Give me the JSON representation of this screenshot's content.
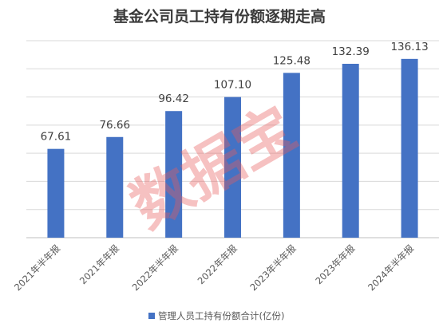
{
  "watermark": "数据宝",
  "chart_data": {
    "type": "bar",
    "title": "基金公司员工持有份额逐期走高",
    "categories": [
      "2021年半年报",
      "2021年年报",
      "2022年半年报",
      "2022年年报",
      "2023年半年报",
      "2023年年报",
      "2024年半年报"
    ],
    "series": [
      {
        "name": "管理人员工持有份额合计(亿份)",
        "values": [
          67.61,
          76.66,
          96.42,
          107.1,
          125.48,
          132.39,
          136.13
        ],
        "color": "#4472c4"
      }
    ],
    "data_labels": [
      "67.61",
      "76.66",
      "96.42",
      "107.10",
      "125.48",
      "132.39",
      "136.13"
    ],
    "ylim": [
      0,
      150
    ],
    "grid": true,
    "legend": "bottom"
  }
}
